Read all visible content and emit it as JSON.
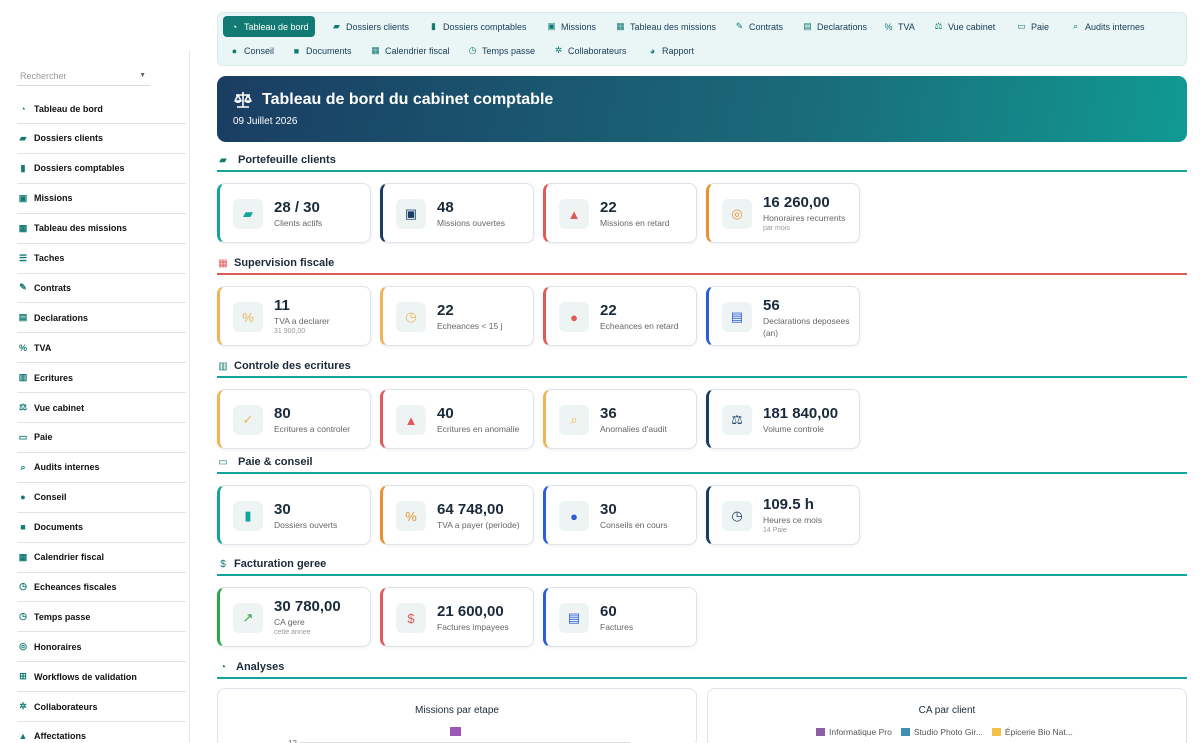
{
  "sidebar": {
    "search_placeholder": "Rechercher",
    "items": [
      {
        "label": "Tableau de bord",
        "icon": "gauge-icon"
      },
      {
        "label": "Dossiers clients",
        "icon": "folder-open-icon"
      },
      {
        "label": "Dossiers comptables",
        "icon": "book-open-icon"
      },
      {
        "label": "Missions",
        "icon": "briefcase-icon"
      },
      {
        "label": "Tableau des missions",
        "icon": "table-icon"
      },
      {
        "label": "Taches",
        "icon": "list-icon"
      },
      {
        "label": "Contrats",
        "icon": "contract-icon"
      },
      {
        "label": "Declarations",
        "icon": "file-text-icon"
      },
      {
        "label": "TVA",
        "icon": "percent-icon"
      },
      {
        "label": "Ecritures",
        "icon": "book-icon"
      },
      {
        "label": "Vue cabinet",
        "icon": "scale-icon"
      },
      {
        "label": "Paie",
        "icon": "money-bill-icon"
      },
      {
        "label": "Audits internes",
        "icon": "magnifier-icon"
      },
      {
        "label": "Conseil",
        "icon": "lightbulb-icon"
      },
      {
        "label": "Documents",
        "icon": "folder-icon"
      },
      {
        "label": "Calendrier fiscal",
        "icon": "calendar-icon"
      },
      {
        "label": "Echeances fiscales",
        "icon": "clock-icon"
      },
      {
        "label": "Temps passe",
        "icon": "stopwatch-icon"
      },
      {
        "label": "Honoraires",
        "icon": "coins-icon"
      },
      {
        "label": "Workflows de validation",
        "icon": "sitemap-icon"
      },
      {
        "label": "Collaborateurs",
        "icon": "users-icon"
      },
      {
        "label": "Affectations",
        "icon": "user-tag-icon"
      }
    ]
  },
  "topnav": {
    "row1": [
      {
        "label": "Tableau de bord",
        "icon": "gauge-icon",
        "active": true
      },
      {
        "label": "Dossiers clients",
        "icon": "folder-open-icon"
      },
      {
        "label": "Dossiers comptables",
        "icon": "book-open-icon"
      },
      {
        "label": "Missions",
        "icon": "briefcase-icon"
      },
      {
        "label": "Tableau des missions",
        "icon": "table-icon"
      },
      {
        "label": "Contrats",
        "icon": "contract-icon"
      },
      {
        "label": "Declarations",
        "icon": "file-text-icon"
      },
      {
        "label": "TVA",
        "icon": "percent-icon"
      },
      {
        "label": "Vue cabinet",
        "icon": "scale-icon"
      },
      {
        "label": "Paie",
        "icon": "money-bill-icon"
      },
      {
        "label": "Audits internes",
        "icon": "magnifier-icon"
      }
    ],
    "row2": [
      {
        "label": "Conseil",
        "icon": "lightbulb-icon"
      },
      {
        "label": "Documents",
        "icon": "folder-icon"
      },
      {
        "label": "Calendrier fiscal",
        "icon": "calendar-icon"
      },
      {
        "label": "Temps passe",
        "icon": "stopwatch-icon"
      },
      {
        "label": "Collaborateurs",
        "icon": "users-icon"
      },
      {
        "label": "Rapport",
        "icon": "chart-pie-icon"
      }
    ]
  },
  "hero": {
    "title": "Tableau de bord du cabinet comptable",
    "date": "09 Juillet 2026"
  },
  "sections": [
    {
      "title": "Portefeuille clients",
      "icon": "folder-open-icon",
      "cards": [
        {
          "value": "28 / 30",
          "label": "Clients actifs",
          "sub": "",
          "icon": "folder-open-icon",
          "color": "#13a49a"
        },
        {
          "value": "48",
          "label": "Missions ouvertes",
          "sub": "",
          "icon": "briefcase-icon",
          "color": "#1a3d62"
        },
        {
          "value": "22",
          "label": "Missions en retard",
          "sub": "",
          "icon": "warning-icon",
          "color": "#e05a5a"
        },
        {
          "value": "16 260,00",
          "label": "Honoraires recurrents",
          "sub": "par mois",
          "icon": "coins-icon",
          "color": "#e8912e"
        }
      ]
    },
    {
      "title": "Supervision fiscale",
      "icon": "calendar-icon",
      "cards": [
        {
          "value": "11",
          "label": "TVA a declarer",
          "sub": "31 900,00",
          "icon": "percent-icon",
          "color": "#f0b45a"
        },
        {
          "value": "22",
          "label": "Echeances < 15 j",
          "sub": "",
          "icon": "clock-icon",
          "color": "#f0b45a"
        },
        {
          "value": "22",
          "label": "Echeances en retard",
          "sub": "",
          "icon": "alert-circle-icon",
          "color": "#e05a5a"
        },
        {
          "value": "56",
          "label": "Declarations deposees",
          "label2": "(an)",
          "sub": "",
          "icon": "file-text-icon",
          "color": "#2b5fd9"
        }
      ]
    },
    {
      "title": "Controle des ecritures",
      "icon": "book-icon",
      "cards": [
        {
          "value": "80",
          "label": "Ecritures a controler",
          "sub": "",
          "icon": "clipboard-check-icon",
          "color": "#f0b45a"
        },
        {
          "value": "40",
          "label": "Ecritures en anomalie",
          "sub": "",
          "icon": "warning-icon",
          "color": "#e05a5a"
        },
        {
          "value": "36",
          "label": "Anomalies d'audit",
          "sub": "",
          "icon": "magnifier-icon",
          "color": "#f0b45a"
        },
        {
          "value": "181 840,00",
          "label": "Volume controle",
          "sub": "",
          "icon": "scale-icon",
          "color": "#1a3d62"
        }
      ]
    },
    {
      "title": "Paie & conseil",
      "icon": "money-bill-icon",
      "cards": [
        {
          "value": "30",
          "label": "Dossiers ouverts",
          "sub": "",
          "icon": "book-open-icon",
          "color": "#13a49a"
        },
        {
          "value": "64 748,00",
          "label": "TVA a payer (periode)",
          "sub": "",
          "icon": "percent-icon",
          "color": "#e8912e"
        },
        {
          "value": "30",
          "label": "Conseils en cours",
          "sub": "",
          "icon": "lightbulb-icon",
          "color": "#2b5fd9"
        },
        {
          "value": "109.5 h",
          "label": "Heures ce mois",
          "sub": "14 Paie",
          "icon": "stopwatch-icon",
          "color": "#1a3d62"
        }
      ]
    },
    {
      "title": "Facturation geree",
      "icon": "invoice-icon",
      "cards": [
        {
          "value": "30 780,00",
          "label": "CA gere",
          "sub": "cette annee",
          "icon": "trend-up-icon",
          "color": "#2aa54a"
        },
        {
          "value": "21 600,00",
          "label": "Factures impayees",
          "sub": "",
          "icon": "hand-dollar-icon",
          "color": "#e05a5a"
        },
        {
          "value": "60",
          "label": "Factures",
          "sub": "",
          "icon": "file-invoice-icon",
          "color": "#2b5fd9"
        }
      ]
    }
  ],
  "analyses": {
    "title": "Analyses",
    "charts": [
      {
        "title": "Missions par etape",
        "legend_color": "#9b59b6",
        "axis_tick": "12"
      },
      {
        "title": "CA par client",
        "legend": [
          {
            "label": "Informatique Pro",
            "color": "#8e5ea2"
          },
          {
            "label": "Studio Photo Gir...",
            "color": "#3e8fb0"
          },
          {
            "label": "Épicerie Bio Nat...",
            "color": "#f3c04a"
          }
        ]
      }
    ]
  },
  "colors": {
    "teal": "#127a73",
    "accent": "#13a49a",
    "navy": "#1a3d62",
    "red": "#e05a5a"
  }
}
